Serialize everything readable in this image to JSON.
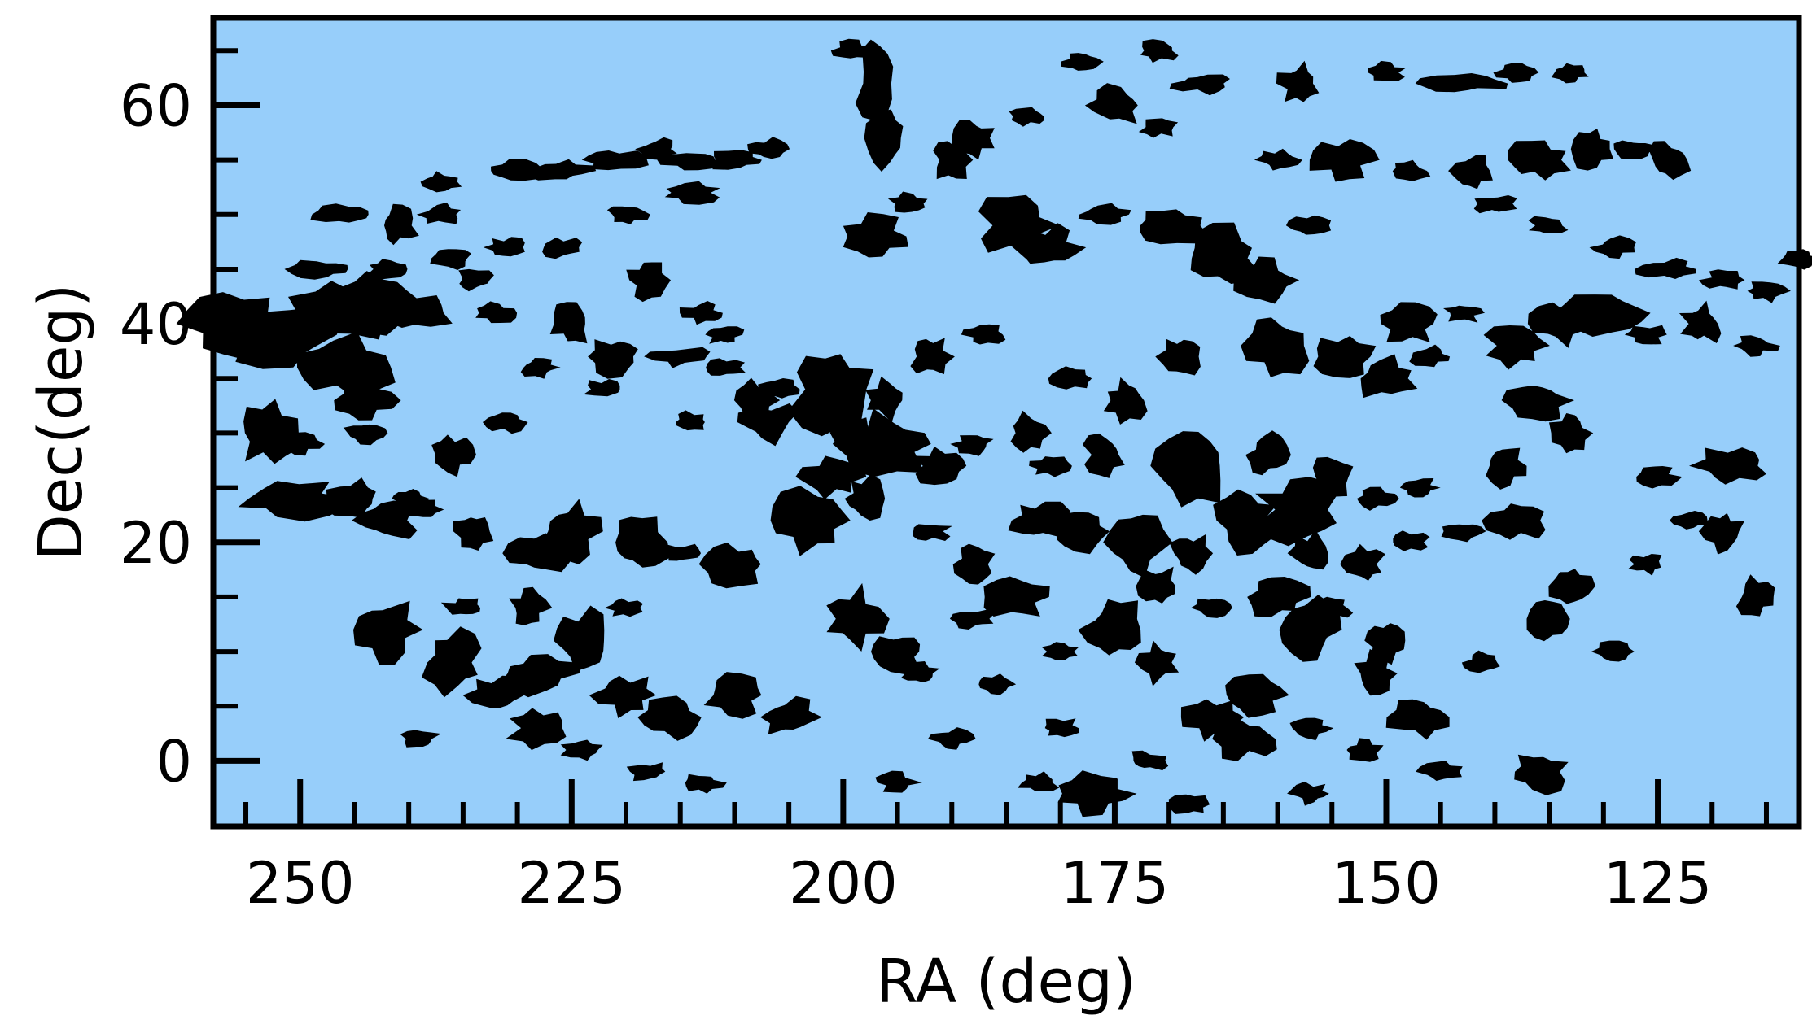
{
  "chart_data": {
    "type": "scatter",
    "xlabel": "RA (deg)",
    "ylabel": "Dec(deg)",
    "xlim": [
      258,
      112
    ],
    "ylim": [
      -6,
      68
    ],
    "x_major_ticks": [
      250,
      225,
      200,
      175,
      150,
      125
    ],
    "x_tick_labels": [
      "250",
      "225",
      "200",
      "175",
      "150",
      "125"
    ],
    "x_minor_step": 5,
    "y_major_ticks": [
      0,
      20,
      40,
      60
    ],
    "y_tick_labels": [
      "0",
      "20",
      "40",
      "60"
    ],
    "y_minor_step": 5,
    "grid": false,
    "colors": {
      "background": "#97cefa",
      "regions": "#000000",
      "frame": "#000000"
    },
    "regions": [
      [
        256,
        40,
        5,
        3
      ],
      [
        252,
        39,
        6,
        3
      ],
      [
        246,
        41,
        5,
        3
      ],
      [
        243,
        42,
        4,
        3
      ],
      [
        240,
        41,
        4,
        2
      ],
      [
        246,
        36,
        5,
        3
      ],
      [
        244,
        33,
        3,
        2
      ],
      [
        253,
        30,
        3,
        3
      ],
      [
        248,
        45,
        3,
        1
      ],
      [
        242,
        45,
        2,
        1
      ],
      [
        246,
        50,
        3,
        1
      ],
      [
        241,
        49,
        2,
        2
      ],
      [
        237,
        50,
        2,
        1
      ],
      [
        237,
        53,
        2,
        1
      ],
      [
        230,
        54,
        3,
        1
      ],
      [
        226,
        54,
        3,
        1
      ],
      [
        221,
        55,
        3,
        1
      ],
      [
        217,
        56,
        2,
        1
      ],
      [
        214,
        55,
        3,
        1
      ],
      [
        210,
        55,
        3,
        1
      ],
      [
        207,
        56,
        2,
        1
      ],
      [
        236,
        46,
        2,
        1
      ],
      [
        234,
        44,
        2,
        1
      ],
      [
        232,
        41,
        2,
        1
      ],
      [
        225,
        40,
        2,
        2
      ],
      [
        228,
        36,
        2,
        1
      ],
      [
        222,
        34,
        2,
        1
      ],
      [
        221,
        37,
        3,
        2
      ],
      [
        215,
        37,
        3,
        1
      ],
      [
        211,
        36,
        2,
        1
      ],
      [
        206,
        34,
        2,
        1
      ],
      [
        201,
        34,
        4,
        4
      ],
      [
        196,
        33,
        2,
        2
      ],
      [
        199,
        30,
        2,
        2
      ],
      [
        196,
        29,
        5,
        3
      ],
      [
        191,
        27,
        3,
        2
      ],
      [
        188,
        29,
        2,
        1
      ],
      [
        183,
        30,
        2,
        2
      ],
      [
        181,
        27,
        2,
        1
      ],
      [
        176,
        28,
        2,
        2
      ],
      [
        168,
        27,
        4,
        4
      ],
      [
        161,
        28,
        2,
        2
      ],
      [
        158,
        23,
        4,
        3
      ],
      [
        155,
        26,
        2,
        2
      ],
      [
        151,
        24,
        2,
        1
      ],
      [
        147,
        25,
        2,
        1
      ],
      [
        139,
        27,
        2,
        2
      ],
      [
        136,
        33,
        3,
        2
      ],
      [
        133,
        30,
        2,
        2
      ],
      [
        125,
        26,
        2,
        1
      ],
      [
        118,
        27,
        4,
        2
      ],
      [
        122,
        22,
        2,
        1
      ],
      [
        119,
        21,
        2,
        2
      ],
      [
        126,
        18,
        2,
        1
      ],
      [
        116,
        15,
        2,
        2
      ],
      [
        251,
        24,
        6,
        2
      ],
      [
        245,
        24,
        3,
        2
      ],
      [
        242,
        22,
        3,
        2
      ],
      [
        239,
        23,
        2,
        1
      ],
      [
        234,
        21,
        2,
        2
      ],
      [
        228,
        19,
        3,
        2
      ],
      [
        225,
        21,
        3,
        3
      ],
      [
        219,
        20,
        3,
        3
      ],
      [
        215,
        19,
        2,
        1
      ],
      [
        210,
        18,
        3,
        2
      ],
      [
        203,
        22,
        4,
        3
      ],
      [
        198,
        24,
        2,
        2
      ],
      [
        192,
        21,
        2,
        1
      ],
      [
        188,
        18,
        2,
        2
      ],
      [
        182,
        22,
        3,
        2
      ],
      [
        178,
        21,
        3,
        2
      ],
      [
        173,
        20,
        3,
        3
      ],
      [
        168,
        19,
        2,
        2
      ],
      [
        163,
        22,
        3,
        3
      ],
      [
        157,
        19,
        2,
        2
      ],
      [
        152,
        18,
        2,
        2
      ],
      [
        148,
        20,
        2,
        1
      ],
      [
        143,
        21,
        2,
        1
      ],
      [
        138,
        22,
        3,
        2
      ],
      [
        133,
        16,
        2,
        2
      ],
      [
        242,
        12,
        3,
        3
      ],
      [
        236,
        9,
        3,
        3
      ],
      [
        232,
        6,
        3,
        2
      ],
      [
        228,
        8,
        4,
        2
      ],
      [
        224,
        11,
        3,
        3
      ],
      [
        220,
        6,
        3,
        2
      ],
      [
        216,
        4,
        3,
        2
      ],
      [
        210,
        6,
        3,
        2
      ],
      [
        205,
        4,
        3,
        2
      ],
      [
        199,
        13,
        3,
        3
      ],
      [
        195,
        10,
        3,
        2
      ],
      [
        193,
        8,
        2,
        1
      ],
      [
        188,
        13,
        2,
        1
      ],
      [
        184,
        15,
        3,
        2
      ],
      [
        180,
        10,
        2,
        1
      ],
      [
        175,
        12,
        3,
        3
      ],
      [
        171,
        9,
        2,
        2
      ],
      [
        166,
        4,
        3,
        2
      ],
      [
        162,
        6,
        3,
        2
      ],
      [
        157,
        12,
        3,
        3
      ],
      [
        151,
        8,
        2,
        2
      ],
      [
        147,
        4,
        3,
        2
      ],
      [
        141,
        9,
        2,
        1
      ],
      [
        135,
        13,
        2,
        2
      ],
      [
        129,
        10,
        2,
        1
      ],
      [
        239,
        2,
        2,
        1
      ],
      [
        228,
        3,
        3,
        2
      ],
      [
        224,
        1,
        2,
        1
      ],
      [
        218,
        -1,
        2,
        1
      ],
      [
        213,
        -2,
        2,
        1
      ],
      [
        182,
        -2,
        2,
        1
      ],
      [
        177,
        -3,
        4,
        2
      ],
      [
        172,
        0,
        2,
        1
      ],
      [
        163,
        2,
        3,
        2
      ],
      [
        157,
        3,
        2,
        1
      ],
      [
        152,
        1,
        2,
        1
      ],
      [
        136,
        -1,
        3,
        2
      ],
      [
        201,
        26,
        3,
        2
      ],
      [
        207,
        31,
        3,
        2
      ],
      [
        211,
        39,
        2,
        1
      ],
      [
        197,
        48,
        3,
        2
      ],
      [
        194,
        51,
        2,
        1
      ],
      [
        190,
        55,
        2,
        2
      ],
      [
        184,
        49,
        4,
        3
      ],
      [
        181,
        47,
        3,
        2
      ],
      [
        176,
        50,
        3,
        1
      ],
      [
        170,
        49,
        4,
        2
      ],
      [
        165,
        46,
        4,
        3
      ],
      [
        161,
        44,
        3,
        2
      ],
      [
        157,
        49,
        2,
        1
      ],
      [
        197,
        62,
        2,
        4
      ],
      [
        196,
        57,
        2,
        3
      ],
      [
        199,
        65,
        2,
        1
      ],
      [
        188,
        57,
        2,
        2
      ],
      [
        183,
        59,
        2,
        1
      ],
      [
        178,
        64,
        2,
        1
      ],
      [
        171,
        65,
        2,
        1
      ],
      [
        167,
        62,
        3,
        1
      ],
      [
        158,
        62,
        2,
        2
      ],
      [
        150,
        63,
        2,
        1
      ],
      [
        143,
        62,
        4,
        1
      ],
      [
        138,
        63,
        2,
        1
      ],
      [
        133,
        63,
        2,
        1
      ],
      [
        175,
        60,
        3,
        2
      ],
      [
        171,
        58,
        2,
        1
      ],
      [
        160,
        55,
        2,
        1
      ],
      [
        154,
        55,
        3,
        2
      ],
      [
        148,
        54,
        2,
        1
      ],
      [
        142,
        54,
        2,
        2
      ],
      [
        136,
        55,
        3,
        2
      ],
      [
        131,
        56,
        2,
        2
      ],
      [
        127,
        56,
        2,
        1
      ],
      [
        124,
        55,
        2,
        2
      ],
      [
        140,
        51,
        2,
        1
      ],
      [
        135,
        49,
        2,
        1
      ],
      [
        129,
        47,
        2,
        1
      ],
      [
        124,
        45,
        3,
        1
      ],
      [
        119,
        44,
        2,
        1
      ],
      [
        115,
        43,
        2,
        1
      ],
      [
        112,
        46,
        2,
        1
      ],
      [
        148,
        40,
        3,
        2
      ],
      [
        143,
        41,
        2,
        1
      ],
      [
        138,
        38,
        3,
        2
      ],
      [
        134,
        40,
        3,
        2
      ],
      [
        130,
        41,
        4,
        2
      ],
      [
        126,
        39,
        2,
        1
      ],
      [
        121,
        40,
        2,
        2
      ],
      [
        116,
        38,
        2,
        1
      ],
      [
        160,
        38,
        3,
        3
      ],
      [
        154,
        37,
        3,
        2
      ],
      [
        150,
        35,
        3,
        2
      ],
      [
        146,
        37,
        2,
        1
      ],
      [
        169,
        37,
        2,
        2
      ],
      [
        174,
        33,
        2,
        2
      ],
      [
        179,
        35,
        2,
        1
      ],
      [
        187,
        39,
        2,
        1
      ],
      [
        192,
        37,
        2,
        2
      ],
      [
        208,
        33,
        2,
        2
      ],
      [
        214,
        31,
        2,
        1
      ],
      [
        231,
        31,
        2,
        1
      ],
      [
        236,
        28,
        2,
        2
      ],
      [
        240,
        24,
        2,
        1
      ],
      [
        244,
        30,
        2,
        1
      ],
      [
        250,
        29,
        2,
        1
      ],
      [
        214,
        52,
        3,
        1
      ],
      [
        220,
        50,
        2,
        1
      ],
      [
        226,
        47,
        2,
        1
      ],
      [
        231,
        47,
        2,
        1
      ],
      [
        218,
        44,
        2,
        2
      ],
      [
        213,
        41,
        2,
        1
      ],
      [
        186,
        7,
        2,
        1
      ],
      [
        180,
        3,
        2,
        1
      ],
      [
        190,
        2,
        2,
        1
      ],
      [
        195,
        -2,
        2,
        1
      ],
      [
        168,
        -4,
        2,
        1
      ],
      [
        157,
        -3,
        2,
        1
      ],
      [
        145,
        -1,
        2,
        1
      ],
      [
        150,
        11,
        2,
        2
      ],
      [
        155,
        14,
        2,
        1
      ],
      [
        160,
        15,
        3,
        2
      ],
      [
        166,
        14,
        2,
        1
      ],
      [
        171,
        16,
        2,
        2
      ],
      [
        235,
        14,
        2,
        1
      ],
      [
        229,
        14,
        2,
        2
      ],
      [
        220,
        14,
        2,
        1
      ]
    ]
  }
}
